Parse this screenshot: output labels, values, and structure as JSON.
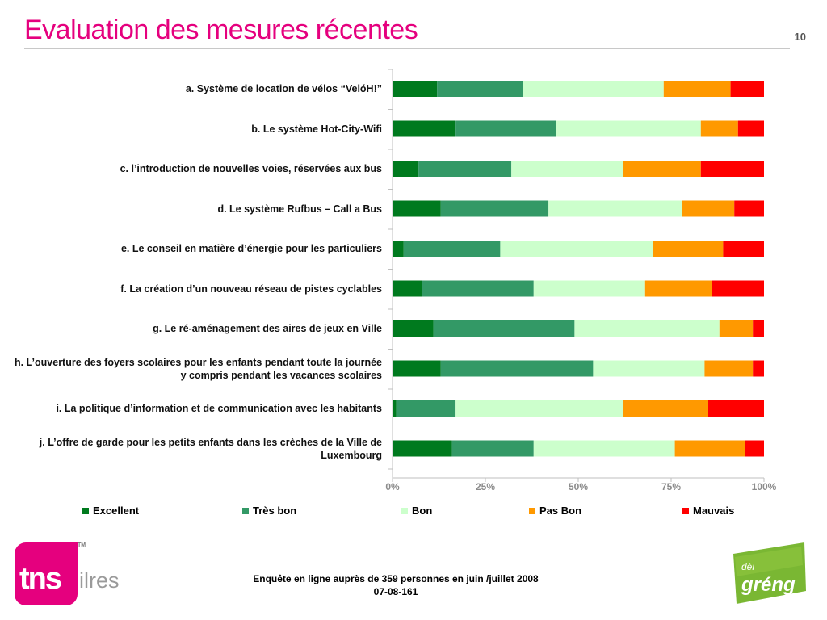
{
  "title": "Evaluation des mesures récentes",
  "page_number": "10",
  "footer": {
    "line1": "Enquête en ligne auprès de 359 personnes en juin /juillet 2008",
    "line2": "07-08-161"
  },
  "logos": {
    "tns_text": "tns",
    "tns_sub": "ilres",
    "tns_tm": "TM",
    "green_small": "déi",
    "green_big": "gréng"
  },
  "colors": {
    "title": "#e5007e",
    "excellent": "#007a1e",
    "tres_bon": "#339966",
    "bon": "#ccffcc",
    "pas_bon": "#ff9900",
    "mauvais": "#ff0000",
    "gridline": "#d9d9d9"
  },
  "chart_data": {
    "type": "bar",
    "orientation": "horizontal",
    "stacked": "percent",
    "categories": [
      "a. Système de location de vélos “VelóH!”",
      "b. Le système Hot-City-Wifi",
      "c. l’introduction de nouvelles voies, réservées aux bus",
      "d. Le système Rufbus – Call a Bus",
      "e. Le conseil en matière d’énergie pour les particuliers",
      "f. La création d’un nouveau réseau de pistes cyclables",
      "g. Le ré-aménagement des aires de jeux en Ville",
      "h. L’ouverture des foyers scolaires pour les enfants pendant toute la journée y compris pendant les vacances scolaires",
      "i. La politique d’information et de communication avec les habitants",
      "j. L’offre de garde pour les petits enfants dans les crèches de la Ville de Luxembourg"
    ],
    "series": [
      {
        "name": "Excellent",
        "color": "#007a1e",
        "values": [
          12,
          17,
          7,
          13,
          3,
          8,
          11,
          13,
          1,
          16
        ]
      },
      {
        "name": "Très bon",
        "color": "#339966",
        "values": [
          23,
          27,
          25,
          29,
          26,
          30,
          38,
          41,
          16,
          22
        ]
      },
      {
        "name": "Bon",
        "color": "#ccffcc",
        "values": [
          38,
          39,
          30,
          36,
          41,
          30,
          39,
          30,
          45,
          38
        ]
      },
      {
        "name": "Pas Bon",
        "color": "#ff9900",
        "values": [
          18,
          10,
          21,
          14,
          19,
          18,
          9,
          13,
          23,
          19
        ]
      },
      {
        "name": "Mauvais",
        "color": "#ff0000",
        "values": [
          9,
          7,
          17,
          8,
          11,
          14,
          3,
          3,
          15,
          5
        ]
      }
    ],
    "xlim": [
      0,
      100
    ],
    "xticks": [
      "0%",
      "25%",
      "50%",
      "75%",
      "100%"
    ],
    "legend_position": "bottom",
    "grid": "vertical ticks only"
  }
}
